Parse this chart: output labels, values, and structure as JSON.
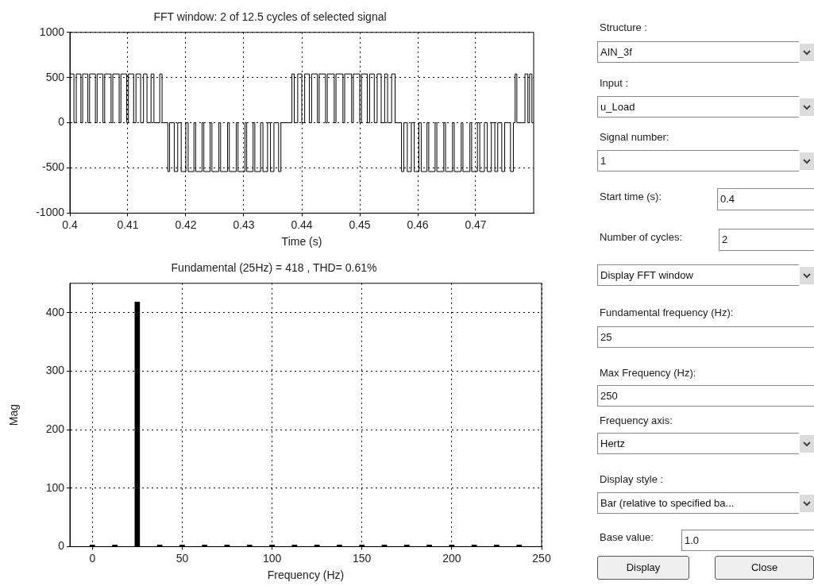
{
  "chart_data": [
    {
      "type": "step",
      "title": "FFT window: 2 of 12.5 cycles of selected signal",
      "xlabel": "Time (s)",
      "color": "#000000",
      "grid": true,
      "xlim": [
        0.4,
        0.48
      ],
      "xticks": [
        0.4,
        0.41,
        0.42,
        0.43,
        0.44,
        0.45,
        0.46,
        0.47
      ],
      "ylim": [
        -1000,
        1000
      ],
      "yticks": [
        -1000,
        -500,
        0,
        500,
        1000
      ],
      "x": [
        0.4,
        0.4007,
        0.4011,
        0.4019,
        0.4022,
        0.4031,
        0.4034,
        0.4044,
        0.4047,
        0.4057,
        0.406,
        0.4071,
        0.4074,
        0.4085,
        0.4088,
        0.4098,
        0.4101,
        0.411,
        0.4114,
        0.4122,
        0.4127,
        0.4133,
        0.414,
        0.4145,
        0.4155,
        0.4159,
        0.4169,
        0.4172,
        0.418,
        0.4186,
        0.4192,
        0.42,
        0.4204,
        0.4214,
        0.4217,
        0.4228,
        0.4231,
        0.4242,
        0.4245,
        0.4257,
        0.426,
        0.4272,
        0.4275,
        0.4287,
        0.429,
        0.4302,
        0.4305,
        0.4316,
        0.4319,
        0.4329,
        0.4333,
        0.4341,
        0.4346,
        0.4352,
        0.436,
        0.4364,
        0.4383,
        0.4387,
        0.4393,
        0.44,
        0.4405,
        0.4413,
        0.4417,
        0.4427,
        0.443,
        0.4441,
        0.4444,
        0.4456,
        0.4459,
        0.4471,
        0.4474,
        0.4486,
        0.4489,
        0.45,
        0.4503,
        0.4513,
        0.4517,
        0.4525,
        0.453,
        0.4537,
        0.4543,
        0.4548,
        0.4555,
        0.4561,
        0.4572,
        0.4576,
        0.4582,
        0.4589,
        0.4594,
        0.4602,
        0.4606,
        0.4616,
        0.4619,
        0.463,
        0.4633,
        0.4645,
        0.4648,
        0.466,
        0.4663,
        0.4675,
        0.4678,
        0.469,
        0.4693,
        0.4703,
        0.4707,
        0.4715,
        0.472,
        0.4727,
        0.4733,
        0.4738,
        0.4745,
        0.475,
        0.476,
        0.4765,
        0.4768,
        0.4771,
        0.4785,
        0.479,
        0.4793,
        0.4797,
        0.48
      ],
      "values": [
        540,
        0,
        540,
        0,
        540,
        0,
        540,
        0,
        540,
        0,
        540,
        0,
        540,
        0,
        540,
        0,
        540,
        0,
        540,
        0,
        540,
        0,
        540,
        0,
        540,
        0,
        -540,
        0,
        -540,
        0,
        -540,
        0,
        -540,
        0,
        -540,
        0,
        -540,
        0,
        -540,
        0,
        -540,
        0,
        -540,
        0,
        -540,
        0,
        -540,
        0,
        -540,
        0,
        -540,
        0,
        -540,
        0,
        -540,
        0,
        540,
        0,
        540,
        0,
        540,
        0,
        540,
        0,
        540,
        0,
        540,
        0,
        540,
        0,
        540,
        0,
        540,
        0,
        540,
        0,
        540,
        0,
        540,
        0,
        540,
        0,
        540,
        0,
        -540,
        0,
        -540,
        0,
        -540,
        0,
        -540,
        0,
        -540,
        0,
        -540,
        0,
        -540,
        0,
        -540,
        0,
        -540,
        0,
        -540,
        0,
        -540,
        0,
        -540,
        0,
        -540,
        0,
        -540,
        0,
        -540,
        0,
        540,
        0,
        540,
        0,
        540,
        0,
        0
      ]
    },
    {
      "type": "bar",
      "title": "Fundamental (25Hz) = 418 , THD= 0.61%",
      "xlabel": "Frequency (Hz)",
      "ylabel": "Mag",
      "color": "#000000",
      "grid": true,
      "xlim": [
        -12.5,
        250
      ],
      "xticks": [
        0,
        50,
        100,
        150,
        200,
        250
      ],
      "ylim": [
        0,
        450
      ],
      "yticks": [
        0,
        100,
        200,
        300,
        400
      ],
      "x": [
        0,
        12.5,
        25,
        37.5,
        50,
        62.5,
        75,
        87.5,
        100,
        112.5,
        125,
        137.5,
        150,
        162.5,
        175,
        187.5,
        200,
        212.5,
        225,
        237.5
      ],
      "values": [
        0,
        0,
        418,
        0,
        0,
        0,
        0,
        0,
        0,
        0,
        0,
        0,
        0,
        0,
        0,
        0,
        0,
        0,
        0,
        0
      ]
    },
    {
      "type": "other",
      "annotations": [
        "Structure :",
        "AIN_3f",
        "Input :",
        "u_Load",
        "Signal number:",
        "1",
        "Start time (s):",
        "0.4",
        "Number of cycles:",
        "2",
        "Display FFT window",
        "Fundamental frequency (Hz):",
        "25",
        "Max Frequency (Hz):",
        "250",
        "Frequency axis:",
        "Hertz",
        "Display style :",
        "Bar (relative to specified ba...",
        "Base value:",
        "1.0",
        "Display",
        "Close"
      ]
    }
  ]
}
